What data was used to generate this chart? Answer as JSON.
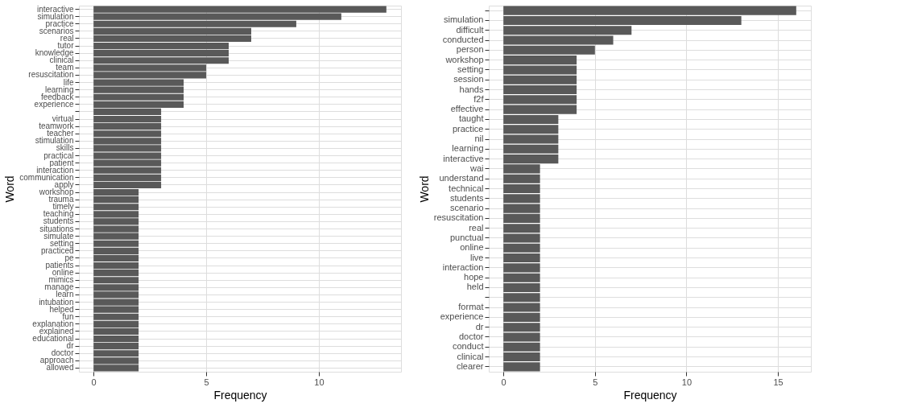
{
  "chart_data": [
    {
      "type": "bar",
      "orientation": "horizontal",
      "xlabel": "Frequency",
      "ylabel": "Word",
      "color": "#595959",
      "grid": true,
      "xlim": [
        -0.65,
        13.65
      ],
      "xticks": [
        0,
        5,
        10
      ],
      "categories": [
        "interactive",
        "simulation",
        "practice",
        "scenarios",
        "real",
        "tutor",
        "knowledge",
        "clinical",
        "team",
        "resuscitation",
        "life",
        "learning",
        "feedback",
        "experience",
        null,
        "virtual",
        "teamwork",
        "teacher",
        "stimulation",
        "skills",
        "practical",
        "patient",
        "interaction",
        "communication",
        "apply",
        "workshop",
        "trauma",
        "timely",
        "teaching",
        "students",
        "situations",
        "simulate",
        "setting",
        "practiced",
        "pe",
        "patients",
        "online",
        "mimics",
        "manage",
        "learn",
        "intubation",
        "helped",
        "fun",
        "explanation",
        "explained",
        "educational",
        "dr",
        "doctor",
        "approach",
        "allowed"
      ],
      "values": [
        13,
        11,
        9,
        7,
        7,
        6,
        6,
        6,
        5,
        5,
        4,
        4,
        4,
        4,
        3,
        3,
        3,
        3,
        3,
        3,
        3,
        3,
        3,
        3,
        3,
        2,
        2,
        2,
        2,
        2,
        2,
        2,
        2,
        2,
        2,
        2,
        2,
        2,
        2,
        2,
        2,
        2,
        2,
        2,
        2,
        2,
        2,
        2,
        2,
        2
      ]
    },
    {
      "type": "bar",
      "orientation": "horizontal",
      "xlabel": "Frequency",
      "ylabel": "Word",
      "color": "#595959",
      "grid": true,
      "xlim": [
        -0.8,
        16.8
      ],
      "xticks": [
        0,
        5,
        10,
        15
      ],
      "categories": [
        null,
        "simulation",
        "difficult",
        "conducted",
        "person",
        "workshop",
        "setting",
        "session",
        "hands",
        "f2f",
        "effective",
        "taught",
        "practice",
        "nil",
        "learning",
        "interactive",
        "wai",
        "understand",
        "technical",
        "students",
        "scenario",
        "resuscitation",
        "real",
        "punctual",
        "online",
        "live",
        "interaction",
        "hope",
        "held",
        null,
        "format",
        "experience",
        "dr",
        "doctor",
        "conduct",
        "clinical",
        "clearer"
      ],
      "values": [
        16,
        13,
        7,
        6,
        5,
        4,
        4,
        4,
        4,
        4,
        4,
        3,
        3,
        3,
        3,
        3,
        2,
        2,
        2,
        2,
        2,
        2,
        2,
        2,
        2,
        2,
        2,
        2,
        2,
        2,
        2,
        2,
        2,
        2,
        2,
        2,
        2
      ]
    }
  ]
}
